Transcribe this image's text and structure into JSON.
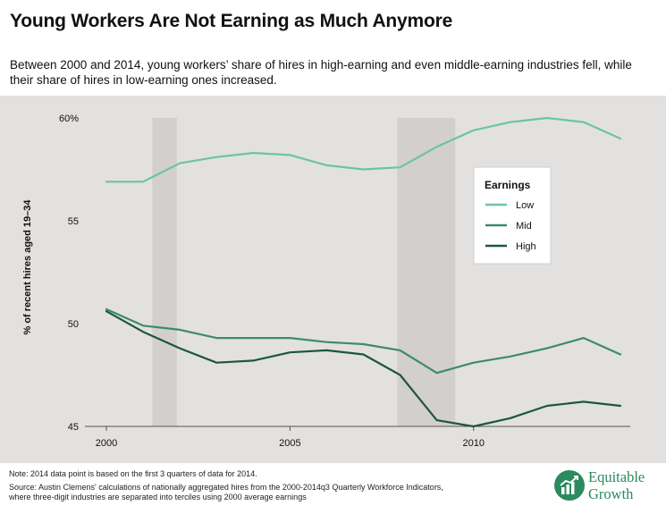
{
  "header": {
    "title": "Young Workers Are Not Earning as Much Anymore",
    "subtitle_line1": "Between 2000 and 2014, young workers’ share of hires in high-earning and even middle-earning industries fell, while",
    "subtitle_line2": "their share of hires in low-earning ones increased."
  },
  "footer": {
    "note": "Note: 2014 data point is based on the first 3 quarters of data for 2014.",
    "source_line1": "Source: Austin Clemens' calculations of nationally aggregated hires from the 2000-2014q3 Quarterly Workforce Indicators,",
    "source_line2": "where three-digit industries are separated into terciles using 2000 average earnings"
  },
  "brand": {
    "line1": "Equitable",
    "line2": "Growth",
    "icon": "equitable-growth-logo-icon",
    "color": "#2b8a5e"
  },
  "colors": {
    "low": "#6cc4a1",
    "mid": "#3b8c69",
    "high": "#1d5640",
    "recession_band": "#d3cfcc",
    "background": "#e3e1df"
  },
  "chart_data": {
    "type": "line",
    "title": "",
    "xlabel": "",
    "ylabel": "% of recent hires aged 19–34",
    "xlim": [
      1999.6,
      2014.4
    ],
    "ylim": [
      45,
      60
    ],
    "x_ticks": [
      2000,
      2005,
      2010
    ],
    "x_tick_labels": [
      "2000",
      "2005",
      "2010"
    ],
    "y_ticks": [
      45,
      50,
      55,
      60
    ],
    "y_tick_labels": [
      "45",
      "50",
      "55",
      "60%"
    ],
    "grid": false,
    "legend": {
      "title": "Earnings",
      "position": "upper-right"
    },
    "shaded_periods": [
      [
        2001.25,
        2001.92
      ],
      [
        2007.92,
        2009.5
      ]
    ],
    "x": [
      2000,
      2001,
      2002,
      2003,
      2004,
      2005,
      2006,
      2007,
      2008,
      2009,
      2010,
      2011,
      2012,
      2013,
      2014
    ],
    "series": [
      {
        "name": "Low",
        "values": [
          56.9,
          56.9,
          57.8,
          58.1,
          58.3,
          58.2,
          57.7,
          57.5,
          57.6,
          58.6,
          59.4,
          59.8,
          60.0,
          59.8,
          59.0
        ]
      },
      {
        "name": "Mid",
        "values": [
          50.7,
          49.9,
          49.7,
          49.3,
          49.3,
          49.3,
          49.1,
          49.0,
          48.7,
          47.6,
          48.1,
          48.4,
          48.8,
          49.3,
          48.5
        ]
      },
      {
        "name": "High",
        "values": [
          50.6,
          49.6,
          48.8,
          48.1,
          48.2,
          48.6,
          48.7,
          48.5,
          47.5,
          45.3,
          45.0,
          45.4,
          46.0,
          46.2,
          46.0
        ]
      }
    ]
  }
}
